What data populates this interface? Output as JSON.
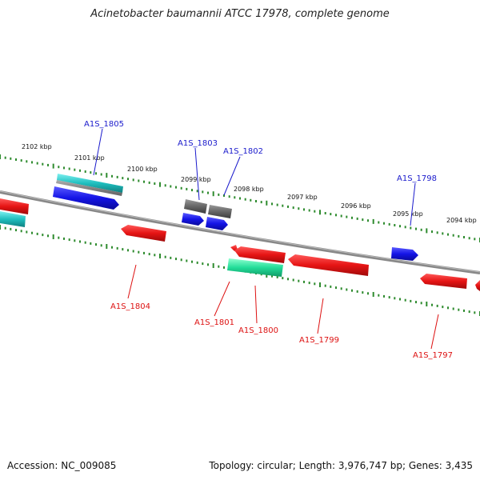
{
  "title": "Acinetobacter baumannii ATCC 17978, complete genome",
  "footer": {
    "accession": "Accession: NC_009085",
    "topology": "Topology: circular; Length: 3,976,747 bp; Genes: 3,435"
  },
  "colors": {
    "backbone": "#888888",
    "tick": "#2e8b2e",
    "plus_label": "#1a1acc",
    "minus_label": "#dd1111",
    "blue": "#1414e6",
    "red": "#e61414",
    "gray": "#6b6b6b",
    "teal": "#1fbfbf",
    "seagreen": "#22dd99"
  },
  "scale": {
    "unit": "kbp",
    "labels": [
      "2102 kbp",
      "2101 kbp",
      "2100 kbp",
      "2099 kbp",
      "2098 kbp",
      "2097 kbp",
      "2096 kbp",
      "2095 kbp",
      "2094 kbp"
    ]
  },
  "genes": [
    {
      "locus": "A1S_1805",
      "strand": "+",
      "color": "blue"
    },
    {
      "locus": "A1S_1803",
      "strand": "+",
      "color": "blue"
    },
    {
      "locus": "A1S_1802",
      "strand": "+",
      "color": "gray"
    },
    {
      "locus": "A1S_1798",
      "strand": "+",
      "color": "blue"
    },
    {
      "locus": "A1S_1804",
      "strand": "-",
      "color": "red"
    },
    {
      "locus": "A1S_1801",
      "strand": "-",
      "color": "seagreen"
    },
    {
      "locus": "A1S_1800",
      "strand": "-",
      "color": "red"
    },
    {
      "locus": "A1S_1799",
      "strand": "-",
      "color": "red"
    },
    {
      "locus": "A1S_1797",
      "strand": "-",
      "color": "red"
    }
  ]
}
